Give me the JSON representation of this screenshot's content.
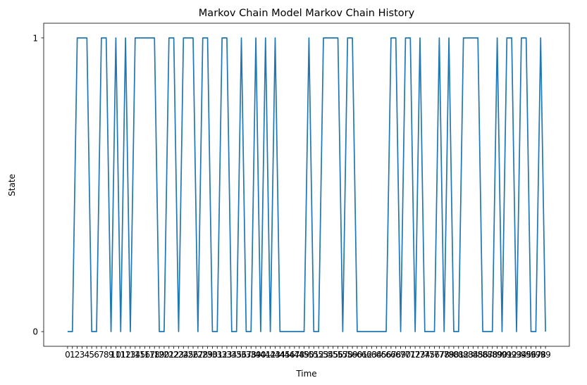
{
  "chart_data": {
    "type": "line",
    "title": "Markov Chain Model Markov Chain History",
    "xlabel": "Time",
    "ylabel": "State",
    "xlim": [
      -4.95,
      103.95
    ],
    "ylim": [
      -0.05,
      1.05
    ],
    "yticks": [
      0,
      1
    ],
    "ytick_labels": [
      "0",
      "1"
    ],
    "grid": false,
    "legend": "none",
    "line_color": "#1f77b4",
    "x": [
      0,
      1,
      2,
      3,
      4,
      5,
      6,
      7,
      8,
      9,
      10,
      11,
      12,
      13,
      14,
      15,
      16,
      17,
      18,
      19,
      20,
      21,
      22,
      23,
      24,
      25,
      26,
      27,
      28,
      29,
      30,
      31,
      32,
      33,
      34,
      35,
      36,
      37,
      38,
      39,
      40,
      41,
      42,
      43,
      44,
      45,
      46,
      47,
      48,
      49,
      50,
      51,
      52,
      53,
      54,
      55,
      56,
      57,
      58,
      59,
      60,
      61,
      62,
      63,
      64,
      65,
      66,
      67,
      68,
      69,
      70,
      71,
      72,
      73,
      74,
      75,
      76,
      77,
      78,
      79,
      80,
      81,
      82,
      83,
      84,
      85,
      86,
      87,
      88,
      89,
      90,
      91,
      92,
      93,
      94,
      95,
      96,
      97,
      98,
      99
    ],
    "values": [
      0,
      0,
      1,
      1,
      1,
      0,
      0,
      1,
      1,
      0,
      1,
      0,
      1,
      0,
      1,
      1,
      1,
      1,
      1,
      0,
      0,
      1,
      1,
      0,
      1,
      1,
      1,
      0,
      1,
      1,
      0,
      0,
      1,
      1,
      0,
      0,
      1,
      0,
      0,
      1,
      0,
      1,
      0,
      1,
      0,
      0,
      0,
      0,
      0,
      0,
      1,
      0,
      0,
      1,
      1,
      1,
      1,
      0,
      1,
      1,
      0,
      0,
      0,
      0,
      0,
      0,
      0,
      1,
      1,
      0,
      1,
      1,
      0,
      1,
      0,
      0,
      0,
      1,
      0,
      1,
      0,
      0,
      1,
      1,
      1,
      1,
      0,
      0,
      0,
      1,
      0,
      1,
      1,
      0,
      1,
      1,
      0,
      0,
      1,
      0
    ]
  }
}
